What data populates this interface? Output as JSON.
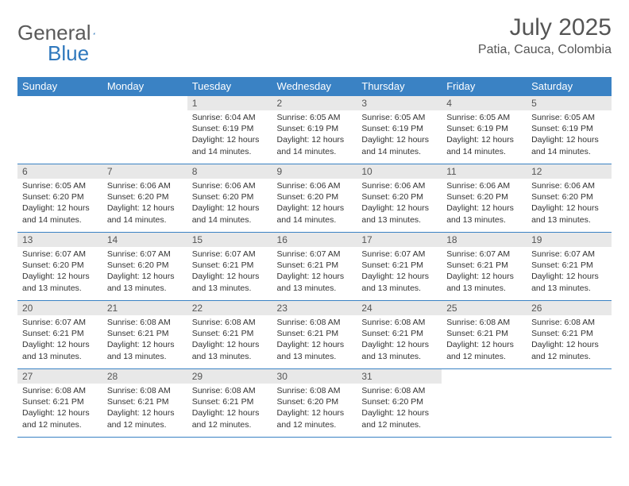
{
  "logo": {
    "text1": "General",
    "text2": "Blue"
  },
  "title": "July 2025",
  "location": "Patia, Cauca, Colombia",
  "colors": {
    "header_bg": "#3a82c4",
    "header_text": "#ffffff",
    "daynum_bg": "#e8e8e8",
    "border": "#3a82c4",
    "logo_gray": "#5a5a5a",
    "logo_blue": "#2f78bd"
  },
  "weekdays": [
    "Sunday",
    "Monday",
    "Tuesday",
    "Wednesday",
    "Thursday",
    "Friday",
    "Saturday"
  ],
  "weeks": [
    [
      {
        "empty": true
      },
      {
        "empty": true
      },
      {
        "num": "1",
        "sunrise": "Sunrise: 6:04 AM",
        "sunset": "Sunset: 6:19 PM",
        "daylight": "Daylight: 12 hours and 14 minutes."
      },
      {
        "num": "2",
        "sunrise": "Sunrise: 6:05 AM",
        "sunset": "Sunset: 6:19 PM",
        "daylight": "Daylight: 12 hours and 14 minutes."
      },
      {
        "num": "3",
        "sunrise": "Sunrise: 6:05 AM",
        "sunset": "Sunset: 6:19 PM",
        "daylight": "Daylight: 12 hours and 14 minutes."
      },
      {
        "num": "4",
        "sunrise": "Sunrise: 6:05 AM",
        "sunset": "Sunset: 6:19 PM",
        "daylight": "Daylight: 12 hours and 14 minutes."
      },
      {
        "num": "5",
        "sunrise": "Sunrise: 6:05 AM",
        "sunset": "Sunset: 6:19 PM",
        "daylight": "Daylight: 12 hours and 14 minutes."
      }
    ],
    [
      {
        "num": "6",
        "sunrise": "Sunrise: 6:05 AM",
        "sunset": "Sunset: 6:20 PM",
        "daylight": "Daylight: 12 hours and 14 minutes."
      },
      {
        "num": "7",
        "sunrise": "Sunrise: 6:06 AM",
        "sunset": "Sunset: 6:20 PM",
        "daylight": "Daylight: 12 hours and 14 minutes."
      },
      {
        "num": "8",
        "sunrise": "Sunrise: 6:06 AM",
        "sunset": "Sunset: 6:20 PM",
        "daylight": "Daylight: 12 hours and 14 minutes."
      },
      {
        "num": "9",
        "sunrise": "Sunrise: 6:06 AM",
        "sunset": "Sunset: 6:20 PM",
        "daylight": "Daylight: 12 hours and 14 minutes."
      },
      {
        "num": "10",
        "sunrise": "Sunrise: 6:06 AM",
        "sunset": "Sunset: 6:20 PM",
        "daylight": "Daylight: 12 hours and 13 minutes."
      },
      {
        "num": "11",
        "sunrise": "Sunrise: 6:06 AM",
        "sunset": "Sunset: 6:20 PM",
        "daylight": "Daylight: 12 hours and 13 minutes."
      },
      {
        "num": "12",
        "sunrise": "Sunrise: 6:06 AM",
        "sunset": "Sunset: 6:20 PM",
        "daylight": "Daylight: 12 hours and 13 minutes."
      }
    ],
    [
      {
        "num": "13",
        "sunrise": "Sunrise: 6:07 AM",
        "sunset": "Sunset: 6:20 PM",
        "daylight": "Daylight: 12 hours and 13 minutes."
      },
      {
        "num": "14",
        "sunrise": "Sunrise: 6:07 AM",
        "sunset": "Sunset: 6:20 PM",
        "daylight": "Daylight: 12 hours and 13 minutes."
      },
      {
        "num": "15",
        "sunrise": "Sunrise: 6:07 AM",
        "sunset": "Sunset: 6:21 PM",
        "daylight": "Daylight: 12 hours and 13 minutes."
      },
      {
        "num": "16",
        "sunrise": "Sunrise: 6:07 AM",
        "sunset": "Sunset: 6:21 PM",
        "daylight": "Daylight: 12 hours and 13 minutes."
      },
      {
        "num": "17",
        "sunrise": "Sunrise: 6:07 AM",
        "sunset": "Sunset: 6:21 PM",
        "daylight": "Daylight: 12 hours and 13 minutes."
      },
      {
        "num": "18",
        "sunrise": "Sunrise: 6:07 AM",
        "sunset": "Sunset: 6:21 PM",
        "daylight": "Daylight: 12 hours and 13 minutes."
      },
      {
        "num": "19",
        "sunrise": "Sunrise: 6:07 AM",
        "sunset": "Sunset: 6:21 PM",
        "daylight": "Daylight: 12 hours and 13 minutes."
      }
    ],
    [
      {
        "num": "20",
        "sunrise": "Sunrise: 6:07 AM",
        "sunset": "Sunset: 6:21 PM",
        "daylight": "Daylight: 12 hours and 13 minutes."
      },
      {
        "num": "21",
        "sunrise": "Sunrise: 6:08 AM",
        "sunset": "Sunset: 6:21 PM",
        "daylight": "Daylight: 12 hours and 13 minutes."
      },
      {
        "num": "22",
        "sunrise": "Sunrise: 6:08 AM",
        "sunset": "Sunset: 6:21 PM",
        "daylight": "Daylight: 12 hours and 13 minutes."
      },
      {
        "num": "23",
        "sunrise": "Sunrise: 6:08 AM",
        "sunset": "Sunset: 6:21 PM",
        "daylight": "Daylight: 12 hours and 13 minutes."
      },
      {
        "num": "24",
        "sunrise": "Sunrise: 6:08 AM",
        "sunset": "Sunset: 6:21 PM",
        "daylight": "Daylight: 12 hours and 13 minutes."
      },
      {
        "num": "25",
        "sunrise": "Sunrise: 6:08 AM",
        "sunset": "Sunset: 6:21 PM",
        "daylight": "Daylight: 12 hours and 12 minutes."
      },
      {
        "num": "26",
        "sunrise": "Sunrise: 6:08 AM",
        "sunset": "Sunset: 6:21 PM",
        "daylight": "Daylight: 12 hours and 12 minutes."
      }
    ],
    [
      {
        "num": "27",
        "sunrise": "Sunrise: 6:08 AM",
        "sunset": "Sunset: 6:21 PM",
        "daylight": "Daylight: 12 hours and 12 minutes."
      },
      {
        "num": "28",
        "sunrise": "Sunrise: 6:08 AM",
        "sunset": "Sunset: 6:21 PM",
        "daylight": "Daylight: 12 hours and 12 minutes."
      },
      {
        "num": "29",
        "sunrise": "Sunrise: 6:08 AM",
        "sunset": "Sunset: 6:21 PM",
        "daylight": "Daylight: 12 hours and 12 minutes."
      },
      {
        "num": "30",
        "sunrise": "Sunrise: 6:08 AM",
        "sunset": "Sunset: 6:20 PM",
        "daylight": "Daylight: 12 hours and 12 minutes."
      },
      {
        "num": "31",
        "sunrise": "Sunrise: 6:08 AM",
        "sunset": "Sunset: 6:20 PM",
        "daylight": "Daylight: 12 hours and 12 minutes."
      },
      {
        "empty": true
      },
      {
        "empty": true
      }
    ]
  ]
}
